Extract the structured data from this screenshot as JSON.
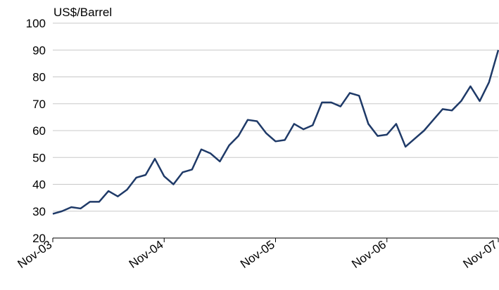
{
  "chart_data": {
    "type": "line",
    "y_label": "US$/Barrel",
    "categories": [
      "Nov-03",
      null,
      null,
      null,
      null,
      null,
      null,
      null,
      null,
      null,
      null,
      null,
      "Nov-04",
      null,
      null,
      null,
      null,
      null,
      null,
      null,
      null,
      null,
      null,
      null,
      "Nov-05",
      null,
      null,
      null,
      null,
      null,
      null,
      null,
      null,
      null,
      null,
      null,
      "Nov-06",
      null,
      null,
      null,
      null,
      null,
      null,
      null,
      null,
      null,
      null,
      null,
      "Nov-07"
    ],
    "series": [
      {
        "color": "#1f3a68",
        "values": [
          29,
          30,
          31.5,
          31,
          33.5,
          33.5,
          37.5,
          35.5,
          38,
          42.5,
          43.5,
          49.5,
          43,
          40,
          44.5,
          45.5,
          53,
          51.5,
          48.5,
          54.5,
          58,
          64,
          63.5,
          59,
          56,
          56.5,
          62.5,
          60.5,
          62,
          70.5,
          70.5,
          69,
          74,
          73,
          62.5,
          58,
          58.5,
          62.5,
          54,
          57,
          60,
          64,
          68,
          67.5,
          71,
          76.5,
          71,
          78,
          90
        ]
      }
    ],
    "ylim": [
      20,
      100
    ],
    "yticks": [
      20,
      30,
      40,
      50,
      60,
      70,
      80,
      90,
      100
    ],
    "grid": true
  }
}
